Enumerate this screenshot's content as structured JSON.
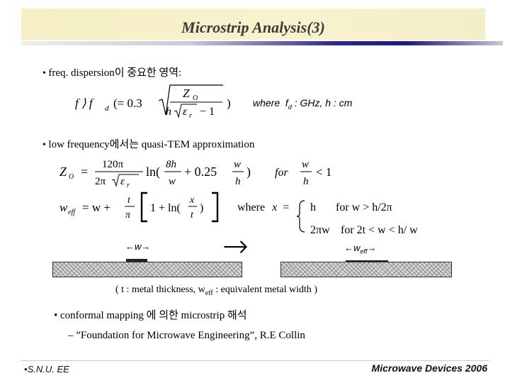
{
  "header": {
    "title": "Microstrip Analysis(3)"
  },
  "bullets": {
    "b1": "freq. dispersion이 중요한 영역:",
    "b2": "low frequency에서는 quasi-TEM approximation",
    "b3": "conformal mapping 에 의한 microstrip 해석"
  },
  "eq1": {
    "lhs": "f ⟩ f",
    "sub_d": "d",
    "eq_open": "(= 0.3",
    "num": "Z",
    "num_sub": "O",
    "den_h": "h",
    "den_rest": "ε",
    "den_sub": "r",
    "den_minus": "− 1",
    "close": ")",
    "where_label": "where",
    "where_f": "f",
    "where_sub": "d",
    "where_rest": ": GHz,  h : cm"
  },
  "eq2": {
    "lhs": "Z",
    "lhs_sub": "O",
    "eq": "=",
    "frac_num": "120π",
    "frac_den_pre": "2π",
    "frac_den_eps": "ε",
    "frac_den_sub": "r",
    "ln": "ln(",
    "t1_num": "8h",
    "t1_den": "w",
    "plus": "+ 0.25",
    "t2_num": "w",
    "t2_den": "h",
    "close": ")",
    "for": "for",
    "c_num": "w",
    "c_den": "h",
    "c_rhs": "< 1"
  },
  "eq3": {
    "lhs": "w",
    "lhs_sub": "eff",
    "rhs": "= w +",
    "t_num": "t",
    "t_den": "π",
    "bracket_content": "1 + ln(",
    "x_num": "x",
    "x_den": "t",
    "close": ")",
    "where_text": "where",
    "x_var": "x",
    "equals": "=",
    "case1_val": "h",
    "case1_cond": "for  w > h/2π",
    "case2_val": "2πw",
    "case2_cond": "for  2t < w <  h/ w"
  },
  "diagram": {
    "left_label": "w",
    "right_label": "w",
    "right_sub": "eff",
    "arrow": "→"
  },
  "caption": {
    "pre": "( t : metal thickness, w",
    "sub": "eff",
    "post": ": equivalent metal width )"
  },
  "reference": "–  ”Foundation for Microwave Engineering”, R.E Collin",
  "footer": {
    "left": "S.N.U. EE",
    "right": "Microwave Devices 2006"
  }
}
